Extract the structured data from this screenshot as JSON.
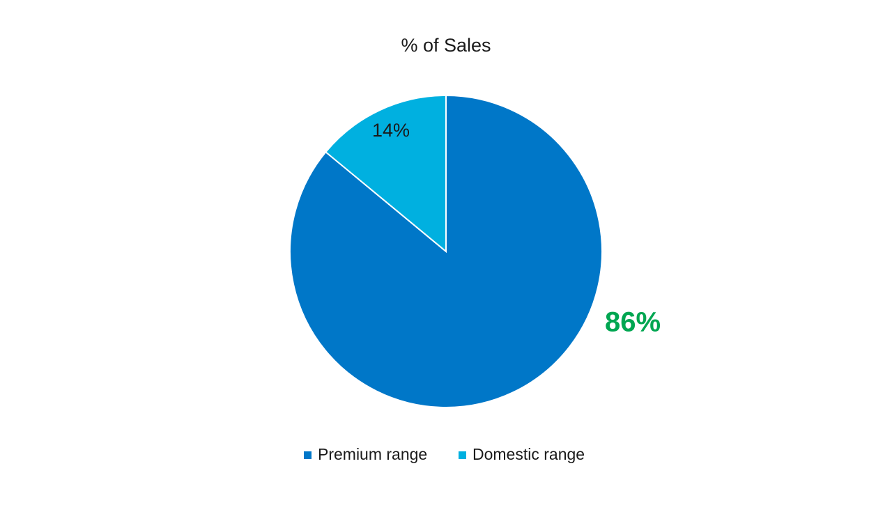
{
  "chart_data": {
    "type": "pie",
    "title": "% of Sales",
    "categories": [
      "Premium range",
      "Domestic range"
    ],
    "values": [
      86,
      14
    ],
    "value_labels": [
      "86%",
      "14%"
    ],
    "colors": [
      "#0077c8",
      "#00b0e0"
    ],
    "value_label_colors": [
      "#00a651",
      "#1a1a1a"
    ],
    "legend": "bottom"
  }
}
